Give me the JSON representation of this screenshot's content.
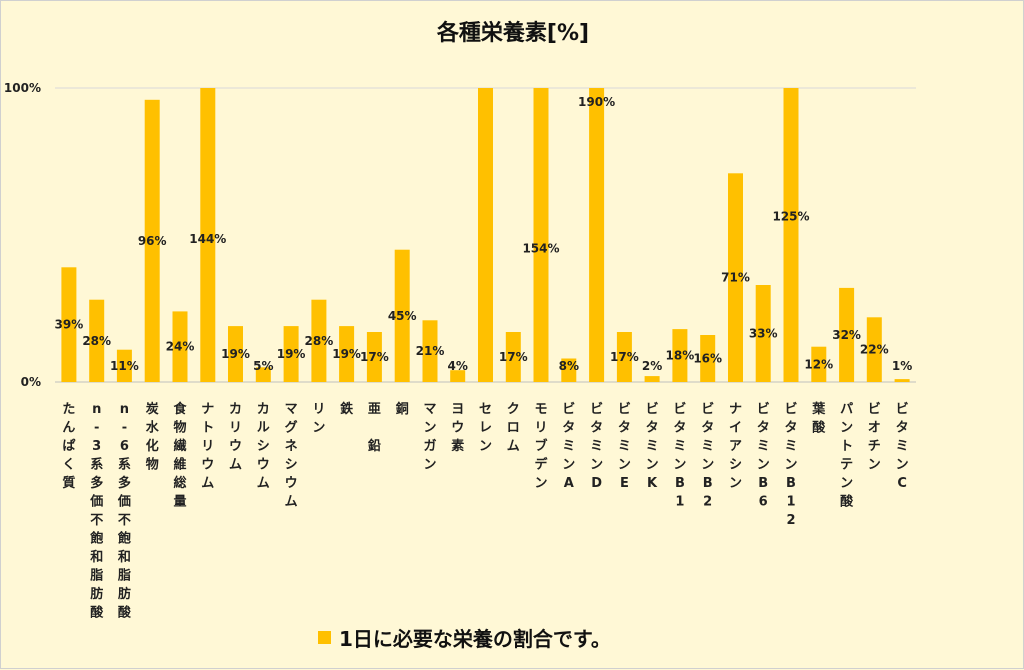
{
  "chart_data": {
    "type": "bar",
    "title": "各種栄養素[%]",
    "categories": [
      "たんぱく質",
      "n-3系多価不飽和脂肪酸",
      "n-6系多価不飽和脂肪酸",
      "炭水化物",
      "食物繊維総量",
      "ナトリウム",
      "カリウム",
      "カルシウム",
      "マグネシウム",
      "リン",
      "鉄",
      "亜鉛",
      "銅",
      "マンガン",
      "ヨウ素",
      "セレン",
      "クロム",
      "モリブデン",
      "ビタミンA",
      "ビタミンD",
      "ビタミンE",
      "ビタミンK",
      "ビタミンB1",
      "ビタミンB2",
      "ナイアシン",
      "ビタミンB6",
      "ビタミンB12",
      "葉酸",
      "パントテン酸",
      "ビオチン",
      "ビタミンC"
    ],
    "category_lines": [
      [
        "た",
        "ん",
        "ぱ",
        "く",
        "質"
      ],
      [
        "n",
        "-",
        "3",
        "系",
        "多",
        "価",
        "不",
        "飽",
        "和",
        "脂",
        "肪",
        "酸"
      ],
      [
        "n",
        "-",
        "6",
        "系",
        "多",
        "価",
        "不",
        "飽",
        "和",
        "脂",
        "肪",
        "酸"
      ],
      [
        "炭",
        "水",
        "化",
        "物"
      ],
      [
        "食",
        "物",
        "繊",
        "維",
        "総",
        "量"
      ],
      [
        "ナ",
        "ト",
        "リ",
        "ウ",
        "ム"
      ],
      [
        "カ",
        "リ",
        "ウ",
        "ム"
      ],
      [
        "カ",
        "ル",
        "シ",
        "ウ",
        "ム"
      ],
      [
        "マ",
        "グ",
        "ネ",
        "シ",
        "ウ",
        "ム"
      ],
      [
        "リ",
        "ン"
      ],
      [
        "鉄"
      ],
      [
        "亜",
        "",
        "鉛"
      ],
      [
        "銅"
      ],
      [
        "マ",
        "ン",
        "ガ",
        "ン"
      ],
      [
        "ヨ",
        "ウ",
        "素"
      ],
      [
        "セ",
        "レ",
        "ン"
      ],
      [
        "ク",
        "ロ",
        "ム"
      ],
      [
        "モ",
        "リ",
        "ブ",
        "デ",
        "ン"
      ],
      [
        "ビ",
        "タ",
        "ミ",
        "ン",
        "A"
      ],
      [
        "ビ",
        "タ",
        "ミ",
        "ン",
        "D"
      ],
      [
        "ビ",
        "タ",
        "ミ",
        "ン",
        "E"
      ],
      [
        "ビ",
        "タ",
        "ミ",
        "ン",
        "K"
      ],
      [
        "ビ",
        "タ",
        "ミ",
        "ン",
        "B",
        "1"
      ],
      [
        "ビ",
        "タ",
        "ミ",
        "ン",
        "B",
        "2"
      ],
      [
        "ナ",
        "イ",
        "ア",
        "シ",
        "ン"
      ],
      [
        "ビ",
        "タ",
        "ミ",
        "ン",
        "B",
        "6"
      ],
      [
        "ビ",
        "タ",
        "ミ",
        "ン",
        "B",
        "1",
        "2"
      ],
      [
        "葉",
        "酸"
      ],
      [
        "パ",
        "ン",
        "ト",
        "テ",
        "ン",
        "酸"
      ],
      [
        "ビ",
        "オ",
        "チ",
        "ン"
      ],
      [
        "ビ",
        "タ",
        "ミ",
        "ン",
        "C"
      ]
    ],
    "values": [
      39,
      28,
      11,
      96,
      24,
      144,
      19,
      5,
      19,
      28,
      19,
      17,
      45,
      21,
      4,
      100,
      17,
      154,
      8,
      190,
      17,
      2,
      18,
      16,
      71,
      33,
      125,
      12,
      32,
      22,
      1
    ],
    "data_labels": [
      "39%",
      "28%",
      "11%",
      "96%",
      "24%",
      "144%",
      "19%",
      "5%",
      "19%",
      "28%",
      "19%",
      "17%",
      "45%",
      "21%",
      "4%",
      "",
      "17%",
      "154%",
      "8%",
      "190%",
      "17%",
      "2%",
      "18%",
      "16%",
      "71%",
      "33%",
      "125%",
      "12%",
      "32%",
      "22%",
      "1%"
    ],
    "series": [
      {
        "name": "1日に必要な栄養の割合です。"
      }
    ],
    "ylim": [
      0,
      100
    ],
    "yticks": [
      "0%",
      "100%"
    ],
    "legend_position": "bottom",
    "grid": false,
    "bar_color": "#ffc000"
  }
}
